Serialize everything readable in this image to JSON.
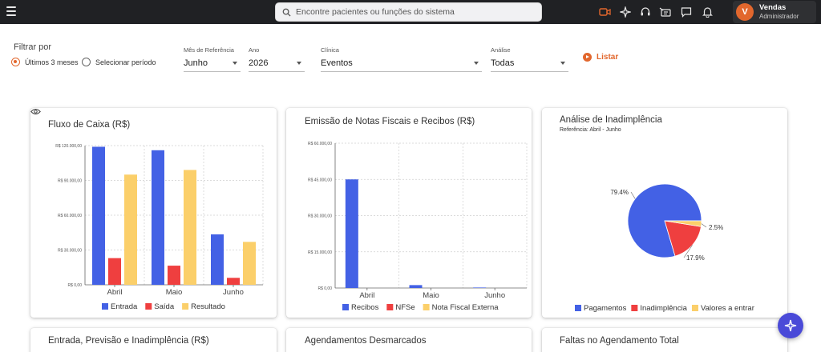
{
  "search": {
    "placeholder": "Encontre pacientes ou funções do sistema"
  },
  "topbar": {
    "icons": [
      "video-icon",
      "sparkle-icon",
      "headset-icon",
      "announcement-icon",
      "chat-icon",
      "bell-icon"
    ],
    "accent": "#e2672d"
  },
  "user": {
    "initial": "V",
    "name": "Vendas",
    "role": "Administrador"
  },
  "filter": {
    "title": "Filtrar por",
    "options": [
      "Últimos 3 meses",
      "Selecionar período"
    ],
    "selected": "Últimos 3 meses",
    "month": {
      "label": "Mês de Referência",
      "value": "Junho"
    },
    "year": {
      "label": "Ano",
      "value": "2026"
    },
    "clinic": {
      "label": "Clínica",
      "value": "Eventos"
    },
    "analysis": {
      "label": "Análise",
      "value": "Todas"
    },
    "list_button": "Listar"
  },
  "cards": {
    "cashflow": {
      "title": "Fluxo de Caixa (R$)"
    },
    "invoices": {
      "title": "Emissão de Notas Fiscais e Recibos (R$)"
    },
    "default": {
      "title": "Análise de Inadimplência",
      "subtitle": "Referência: Abril - Junho"
    },
    "bottom1": {
      "title": "Entrada, Previsão e Inadimplência (R$)"
    },
    "bottom2": {
      "title": "Agendamentos Desmarcados"
    },
    "bottom3": {
      "title": "Faltas no Agendamento Total"
    }
  },
  "chart_data": [
    {
      "type": "bar",
      "title": "Fluxo de Caixa (R$)",
      "categories": [
        "Abril",
        "Maio",
        "Junho"
      ],
      "ylim": [
        0,
        120000
      ],
      "yticks": [
        "R$ 0,00",
        "R$ 30.000,00",
        "R$ 60.000,00",
        "R$ 90.000,00",
        "R$ 120.000,00"
      ],
      "series": [
        {
          "name": "Entrada",
          "color": "#4361e5",
          "values": [
            119000,
            116000,
            43500
          ]
        },
        {
          "name": "Saída",
          "color": "#ef3f3f",
          "values": [
            23000,
            16500,
            6000
          ]
        },
        {
          "name": "Resultado",
          "color": "#fbcf6a",
          "values": [
            95000,
            99000,
            37000
          ]
        }
      ],
      "grid": true,
      "legend": "bottom"
    },
    {
      "type": "bar",
      "title": "Emissão de Notas Fiscais e Recibos (R$)",
      "categories": [
        "Abril",
        "Maio",
        "Junho"
      ],
      "ylim": [
        0,
        60000
      ],
      "yticks": [
        "R$ 0,00",
        "R$ 15.000,00",
        "R$ 30.000,00",
        "R$ 45.000,00",
        "R$ 60.000,00"
      ],
      "series": [
        {
          "name": "Recibos",
          "color": "#4361e5",
          "values": [
            45000,
            1200,
            200
          ]
        },
        {
          "name": "NFSe",
          "color": "#ef3f3f",
          "values": [
            0,
            0,
            0
          ]
        },
        {
          "name": "Nota Fiscal Externa",
          "color": "#fbcf6a",
          "values": [
            0,
            0,
            0
          ]
        }
      ],
      "grid": true,
      "legend": "bottom"
    },
    {
      "type": "pie",
      "title": "Análise de Inadimplência",
      "subtitle": "Referência: Abril - Junho",
      "slices": [
        {
          "name": "Pagamentos",
          "color": "#4361e5",
          "value": 79.4,
          "label": "79.4%"
        },
        {
          "name": "Inadimplência",
          "color": "#ef3f3f",
          "value": 17.9,
          "label": "17.9%"
        },
        {
          "name": "Valores a entrar",
          "color": "#fbcf6a",
          "value": 2.5,
          "label": "2.5%"
        }
      ],
      "legend": "bottom"
    }
  ]
}
